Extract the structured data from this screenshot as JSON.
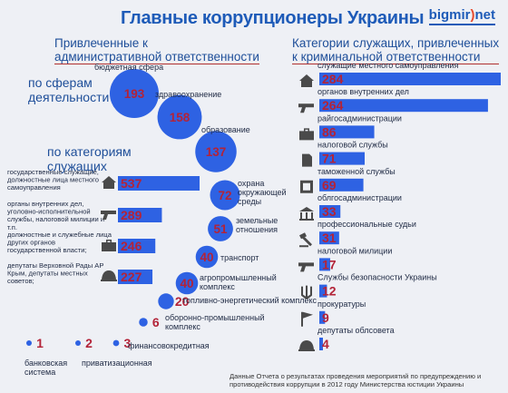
{
  "header": {
    "title": "Главные коррупционеры Украины",
    "brand": "bigmir",
    "brand_dot": ")",
    "brand_tail": "net"
  },
  "sections": {
    "admin_title_1": "Привлеченные к",
    "admin_title_2": "административной ответственности",
    "criminal_title_1": "Категории служащих, привлеченных",
    "criminal_title_2": "к криминальной ответственности",
    "spheres_title_1": "по сферам",
    "spheres_title_2": "деятельности",
    "categories_title_1": "по категориям",
    "categories_title_2": "служащих"
  },
  "footnote": "Данные Отчета о результатах проведения мероприятий по предупреждению и противодействия коррупции в 2012 году Министерства юстиции Украины",
  "colors": {
    "accent": "#2e62e3",
    "number": "#b32338",
    "label": "#1f2a44",
    "icon": "#4a4a4a"
  },
  "chart_data": [
    {
      "type": "bubble",
      "name": "spheres",
      "items": [
        {
          "label": "бюджетная сфера",
          "value": 193
        },
        {
          "label": "здравоохранение",
          "value": 158
        },
        {
          "label": "образование",
          "value": 137
        },
        {
          "label": "охрана окружающей среды",
          "value": 72
        },
        {
          "label": "земельные отношения",
          "value": 51
        },
        {
          "label": "транспорт",
          "value": 40
        },
        {
          "label": "агропромышленный комплекс",
          "value": 40
        },
        {
          "label": "топливно-энергетический комплекс",
          "value": 20
        },
        {
          "label": "оборонно-промышленный комплекс",
          "value": 6
        },
        {
          "label": "финансовокредитная",
          "value": 3
        },
        {
          "label": "приватизационная",
          "value": 2
        },
        {
          "label": "банковская система",
          "value": 1
        }
      ]
    },
    {
      "type": "bar",
      "name": "admin_categories",
      "items": [
        {
          "label": "государственные служащие, должностные лица местного самоуправления",
          "value": 537,
          "icon": "house-icon"
        },
        {
          "label": "органы внутренних дел, уголовно-исполнительной службы, налоговой милиции и т.п.",
          "value": 289,
          "icon": "pistol-icon"
        },
        {
          "label": "должностные и служебные лица других органов государственной власти;",
          "value": 246,
          "icon": "briefcase-icon"
        },
        {
          "label": "депутаты Верховной Рады АР Крым, депутаты местных советов;",
          "value": 227,
          "icon": "bell-icon"
        }
      ]
    },
    {
      "type": "bar",
      "name": "criminal_categories",
      "items": [
        {
          "label": "служащие местного самоуправления",
          "value": 284,
          "icon": "house-icon"
        },
        {
          "label": "органов внутренних дел",
          "value": 264,
          "icon": "pistol-icon"
        },
        {
          "label": "райгосадминистрации",
          "value": 86,
          "icon": "briefcase-icon"
        },
        {
          "label": "налоговой службы",
          "value": 71,
          "icon": "document-icon"
        },
        {
          "label": "таможенной службы",
          "value": 69,
          "icon": "customs-icon"
        },
        {
          "label": "облгосадминистрации",
          "value": 33,
          "icon": "building-icon"
        },
        {
          "label": "профессиональные судьи",
          "value": 31,
          "icon": "gavel-icon"
        },
        {
          "label": "налоговой милиции",
          "value": 17,
          "icon": "pistol-icon"
        },
        {
          "label": "Службы безопасности Украины",
          "value": 12,
          "icon": "trident-icon"
        },
        {
          "label": "прокуратуры",
          "value": 9,
          "icon": "flag-icon"
        },
        {
          "label": "депутаты облсовета",
          "value": 4,
          "icon": "bell-icon"
        }
      ]
    }
  ]
}
